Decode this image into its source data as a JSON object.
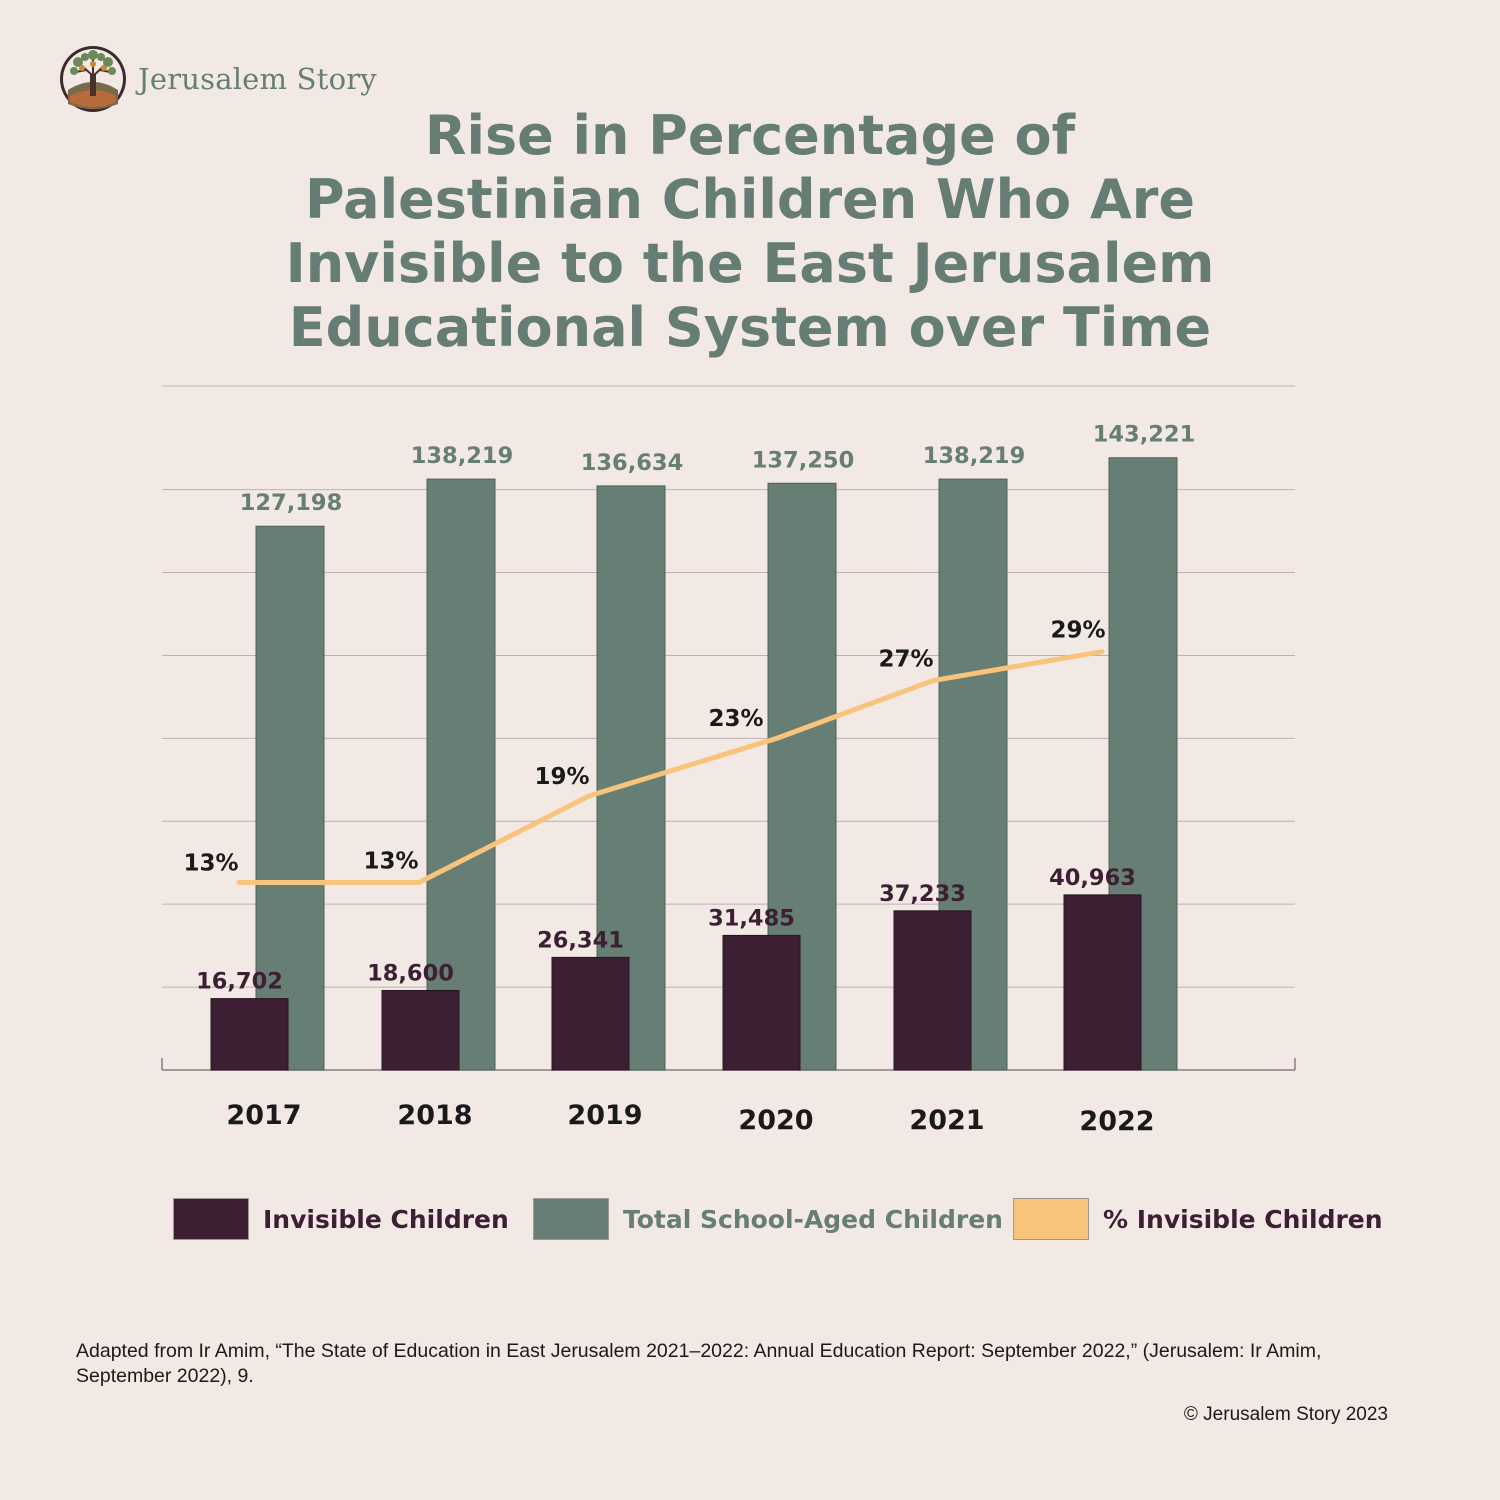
{
  "brand": {
    "name": "Jerusalem Story"
  },
  "title_lines": [
    "Rise in Percentage of",
    "Palestinian Children Who Are",
    "Invisible to the East Jerusalem",
    "Educational System over Time"
  ],
  "colors": {
    "background": "#f2e9e4",
    "invisible": "#3d1f33",
    "total": "#667e74",
    "percent_line": "#f8c37a",
    "grid": "#bfaeb8"
  },
  "chart_data": {
    "type": "bar",
    "categories": [
      "2017",
      "2018",
      "2019",
      "2020",
      "2021",
      "2022"
    ],
    "series": [
      {
        "name": "Invisible Children",
        "values": [
          16702,
          18600,
          26341,
          31485,
          37233,
          40963
        ],
        "labels": [
          "16,702",
          "18,600",
          "26,341",
          "31,485",
          "37,233",
          "40,963"
        ]
      },
      {
        "name": "Total School-Aged Children",
        "values": [
          127198,
          138219,
          136634,
          137250,
          138219,
          143221
        ],
        "labels": [
          "127,198",
          "138,219",
          "136,634",
          "137,250",
          "138,219",
          "143,221"
        ]
      },
      {
        "name": "% Invisible Children",
        "type": "line",
        "values": [
          13,
          13,
          19,
          23,
          27,
          29
        ],
        "labels": [
          "13%",
          "13%",
          "19%",
          "23%",
          "27%",
          "29%"
        ]
      }
    ],
    "ylim": [
      0,
      160000
    ],
    "grid": true,
    "legend": "bottom"
  },
  "legend": [
    {
      "label": "Invisible Children"
    },
    {
      "label": "Total School-Aged Children"
    },
    {
      "label": "% Invisible Children"
    }
  ],
  "source_note": "Adapted from Ir Amim, “The State of Education in East Jerusalem 2021–2022: Annual Education Report: September 2022,” (Jerusalem: Ir Amim, September 2022), 9.",
  "copyright": "© Jerusalem Story 2023"
}
